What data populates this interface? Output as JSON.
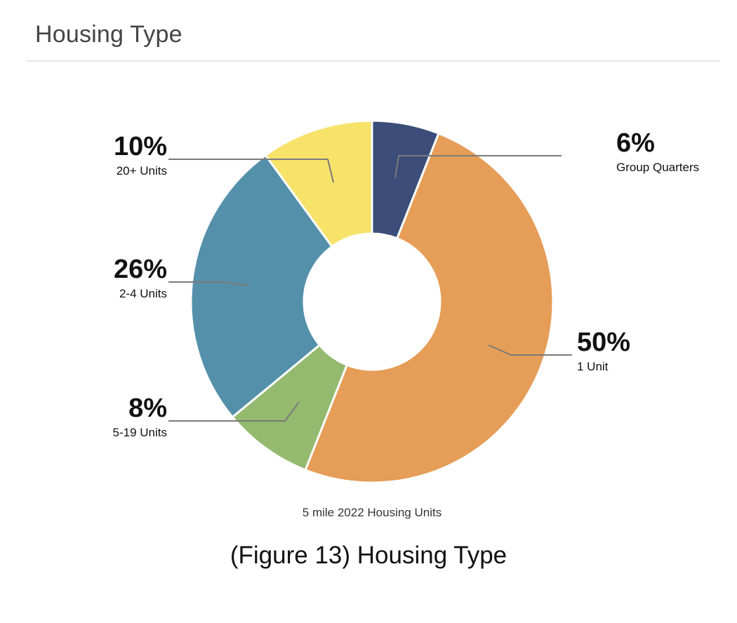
{
  "header": {
    "title": "Housing Type"
  },
  "figure_caption": "(Figure 13) Housing Type",
  "chart_data": {
    "type": "pie",
    "style": "donut",
    "caption": "5 mile 2022 Housing Units",
    "slices": [
      {
        "label": "Group Quarters",
        "value": 6,
        "percent_label": "6%",
        "color": "#3b4d78",
        "label_side": "right"
      },
      {
        "label": "1 Unit",
        "value": 50,
        "percent_label": "50%",
        "color": "#e69d57",
        "label_side": "right"
      },
      {
        "label": "5-19 Units",
        "value": 8,
        "percent_label": "8%",
        "color": "#94ba70",
        "label_side": "left"
      },
      {
        "label": "2-4 Units",
        "value": 26,
        "percent_label": "26%",
        "color": "#5590aa",
        "label_side": "left"
      },
      {
        "label": "20+ Units",
        "value": 10,
        "percent_label": "10%",
        "color": "#f7e26a",
        "label_side": "left"
      }
    ]
  }
}
